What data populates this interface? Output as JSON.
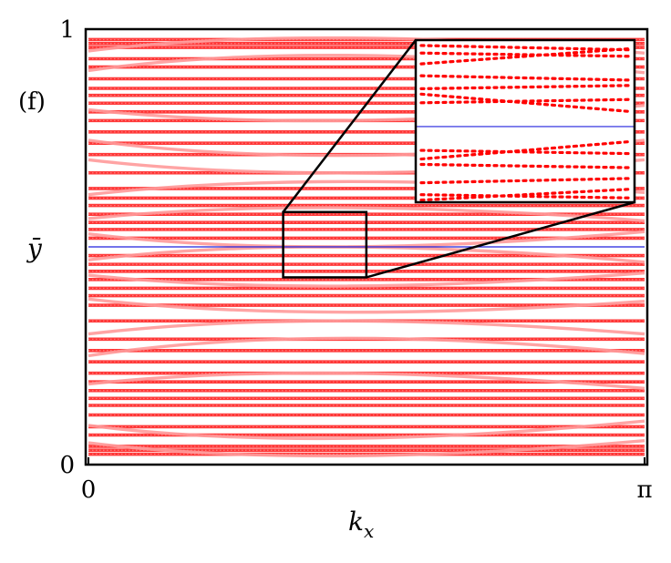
{
  "chart_data": {
    "type": "scatter",
    "panel_label": "(f)",
    "xlabel": "k",
    "xlabel_sub": "x",
    "ylabel": "ȳ",
    "xlim": [
      0,
      3.14159
    ],
    "ylim": [
      0,
      1
    ],
    "x_ticks": [
      {
        "value": 0,
        "label": "0"
      },
      {
        "value": 3.14159,
        "label": "π"
      }
    ],
    "y_ticks": [
      {
        "value": 0,
        "label": "0"
      },
      {
        "value": 1,
        "label": "1"
      }
    ],
    "reference_line": {
      "y": 0.5,
      "color": "#2222dd"
    },
    "marker_color": "#ff0000",
    "band_color": "#ff9a9a",
    "flat_bands_y": [
      0.024,
      0.033,
      0.042,
      0.068,
      0.087,
      0.114,
      0.136,
      0.152,
      0.17,
      0.19,
      0.21,
      0.236,
      0.262,
      0.288,
      0.33,
      0.366,
      0.388,
      0.405,
      0.425,
      0.444,
      0.46,
      0.48,
      0.52,
      0.54,
      0.556,
      0.575,
      0.595,
      0.612,
      0.634,
      0.67,
      0.712,
      0.738,
      0.764,
      0.79,
      0.81,
      0.83,
      0.848,
      0.864,
      0.886,
      0.913,
      0.932,
      0.958,
      0.967,
      0.976
    ],
    "dispersive_bands": [
      {
        "y_start": 0.05,
        "y_mid": 0.02,
        "y_end": 0.055
      },
      {
        "y_start": 0.09,
        "y_mid": 0.06,
        "y_end": 0.1
      },
      {
        "y_start": 0.185,
        "y_mid": 0.21,
        "y_end": 0.175
      },
      {
        "y_start": 0.25,
        "y_mid": 0.29,
        "y_end": 0.255
      },
      {
        "y_start": 0.3,
        "y_mid": 0.33,
        "y_end": 0.3
      },
      {
        "y_start": 0.38,
        "y_mid": 0.35,
        "y_end": 0.375
      },
      {
        "y_start": 0.435,
        "y_mid": 0.41,
        "y_end": 0.44
      },
      {
        "y_start": 0.47,
        "y_mid": 0.5,
        "y_end": 0.465
      },
      {
        "y_start": 0.53,
        "y_mid": 0.5,
        "y_end": 0.535
      },
      {
        "y_start": 0.565,
        "y_mid": 0.59,
        "y_end": 0.56
      },
      {
        "y_start": 0.62,
        "y_mid": 0.65,
        "y_end": 0.625
      },
      {
        "y_start": 0.7,
        "y_mid": 0.67,
        "y_end": 0.7
      },
      {
        "y_start": 0.745,
        "y_mid": 0.71,
        "y_end": 0.745
      },
      {
        "y_start": 0.815,
        "y_mid": 0.79,
        "y_end": 0.825
      },
      {
        "y_start": 0.905,
        "y_mid": 0.94,
        "y_end": 0.9
      },
      {
        "y_start": 0.95,
        "y_mid": 0.98,
        "y_end": 0.945
      }
    ],
    "inset": {
      "zoom_region": {
        "x": [
          1.1,
          1.57
        ],
        "y": [
          0.43,
          0.58
        ]
      },
      "zoomed_bands": [
        {
          "y_left": 0.575,
          "y_right": 0.571
        },
        {
          "y_left": 0.568,
          "y_right": 0.565
        },
        {
          "y_left": 0.558,
          "y_right": 0.572
        },
        {
          "y_left": 0.547,
          "y_right": 0.543
        },
        {
          "y_left": 0.535,
          "y_right": 0.538
        },
        {
          "y_left": 0.53,
          "y_right": 0.514
        },
        {
          "y_left": 0.522,
          "y_right": 0.525
        },
        {
          "y_left": 0.478,
          "y_right": 0.475
        },
        {
          "y_left": 0.47,
          "y_right": 0.486
        },
        {
          "y_left": 0.465,
          "y_right": 0.462
        },
        {
          "y_left": 0.448,
          "y_right": 0.452
        },
        {
          "y_left": 0.437,
          "y_right": 0.434
        },
        {
          "y_left": 0.432,
          "y_right": 0.442
        }
      ]
    }
  }
}
